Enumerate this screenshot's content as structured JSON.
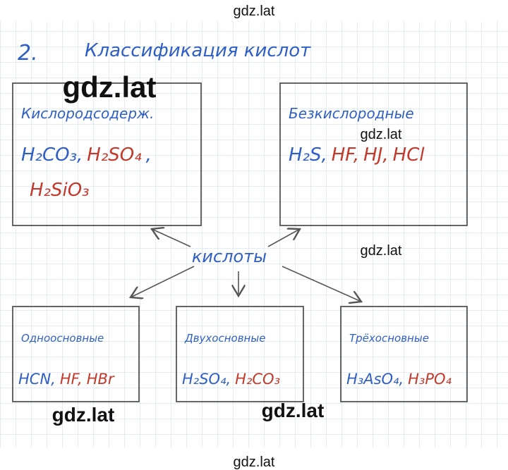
{
  "watermarks": [
    "gdz.lat",
    "gdz.lat",
    "gdz.lat",
    "gdz.lat",
    "gdz.lat",
    "gdz.lat",
    "gdz.lat"
  ],
  "header": {
    "number": "2.",
    "title": "Классификация кислот"
  },
  "center": "кислоты",
  "boxes": [
    {
      "title": "Кислородсодерж.",
      "lines": [
        [
          {
            "text": "H₂CO₃,",
            "ink": "blue"
          },
          {
            "text": "H₂SO₄",
            "ink": "red"
          },
          {
            "text": ",",
            "ink": "blue"
          }
        ],
        [
          {
            "text": "H₂SiO₃",
            "ink": "red"
          }
        ]
      ]
    },
    {
      "title": "Безкислородные",
      "lines": [
        [
          {
            "text": "H₂S,",
            "ink": "blue"
          },
          {
            "text": "HF,",
            "ink": "red"
          },
          {
            "text": "HJ,",
            "ink": "red"
          },
          {
            "text": "HCl",
            "ink": "red"
          }
        ]
      ]
    },
    {
      "title": "Одноосновные",
      "lines": [
        [
          {
            "text": "HCN,",
            "ink": "blue"
          },
          {
            "text": "HF,",
            "ink": "red"
          },
          {
            "text": "HBr",
            "ink": "red"
          }
        ]
      ]
    },
    {
      "title": "Двухосновные",
      "lines": [
        [
          {
            "text": "H₂SO₄,",
            "ink": "blue"
          },
          {
            "text": "H₂CO₃",
            "ink": "red"
          }
        ]
      ]
    },
    {
      "title": "Трёхосновные",
      "lines": [
        [
          {
            "text": "H₃AsO₄,",
            "ink": "blue"
          },
          {
            "text": "H₃PO₄",
            "ink": "red"
          }
        ]
      ]
    }
  ]
}
